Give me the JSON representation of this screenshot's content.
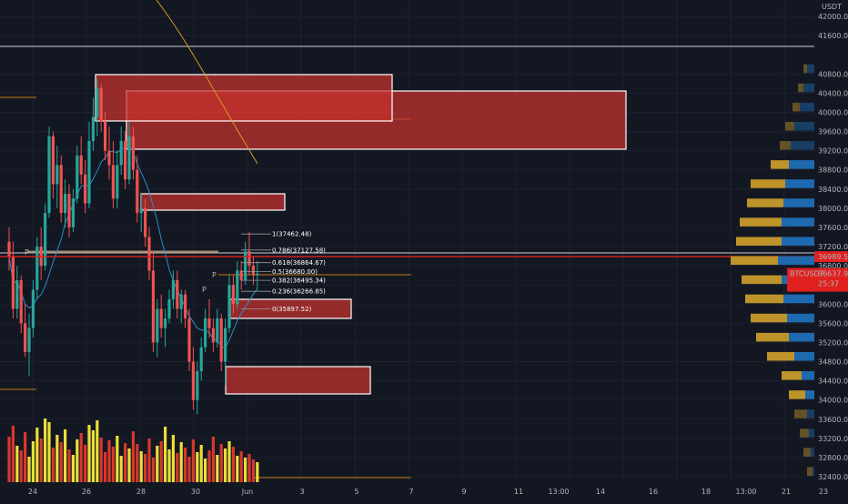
{
  "chart_data": {
    "type": "candlestick",
    "currency": "USDT",
    "y_axis": {
      "range": [
        32200,
        42300
      ],
      "scale": "linear",
      "ticks": [
        42000,
        41600,
        40800,
        40400,
        40000,
        39600,
        39200,
        38800,
        38400,
        38000,
        37600,
        37200,
        36800,
        36400,
        36000,
        35600,
        35200,
        34800,
        34400,
        34000,
        33600,
        33200,
        32800,
        32400
      ]
    },
    "x_axis": {
      "ticks": [
        "24",
        "26",
        "28",
        "30",
        "Jun",
        "3",
        "5",
        "7",
        "9",
        "11",
        "13:00",
        "14",
        "16",
        "18",
        "13:00",
        "21",
        "23"
      ],
      "tick_index": [
        -13,
        -11,
        -9,
        -7,
        -5,
        -3,
        -1,
        1,
        3,
        5,
        7,
        9,
        11,
        13,
        15,
        17,
        19
      ]
    },
    "price_markers": [
      {
        "label": "",
        "value": "36989.55",
        "price": 36989.55,
        "color": "#e0201f"
      },
      {
        "label": "BTCUSDT",
        "value": "36637.99",
        "price": 36637.99,
        "sub": "25:37",
        "color": "#e0201f"
      }
    ],
    "fib_levels": [
      {
        "ratio": "1",
        "price": "37462.48"
      },
      {
        "ratio": "0.786",
        "price": "37127.58"
      },
      {
        "ratio": "0.618",
        "price": "36864.67"
      },
      {
        "ratio": "0.5",
        "price": "36680.00"
      },
      {
        "ratio": "0.382",
        "price": "36495.34"
      },
      {
        "ratio": "0.236",
        "price": "36266.85"
      },
      {
        "ratio": "0",
        "price": "35897.52"
      }
    ],
    "candles": [
      {
        "o": 37300,
        "h": 37600,
        "l": 36700,
        "c": 37000
      },
      {
        "o": 37000,
        "h": 37300,
        "l": 35700,
        "c": 35900
      },
      {
        "o": 35900,
        "h": 36800,
        "l": 35700,
        "c": 36500
      },
      {
        "o": 36500,
        "h": 36600,
        "l": 35400,
        "c": 35600
      },
      {
        "o": 35600,
        "h": 36000,
        "l": 34900,
        "c": 35000
      },
      {
        "o": 35000,
        "h": 35800,
        "l": 34500,
        "c": 35500
      },
      {
        "o": 35500,
        "h": 36500,
        "l": 35300,
        "c": 36300
      },
      {
        "o": 36300,
        "h": 37400,
        "l": 36100,
        "c": 37200
      },
      {
        "o": 37200,
        "h": 37600,
        "l": 36500,
        "c": 36800
      },
      {
        "o": 36800,
        "h": 38100,
        "l": 36700,
        "c": 37900
      },
      {
        "o": 37900,
        "h": 39700,
        "l": 37800,
        "c": 39500
      },
      {
        "o": 39500,
        "h": 39600,
        "l": 38200,
        "c": 38500
      },
      {
        "o": 38500,
        "h": 39300,
        "l": 38000,
        "c": 38900
      },
      {
        "o": 38900,
        "h": 39100,
        "l": 37700,
        "c": 37900
      },
      {
        "o": 37900,
        "h": 38600,
        "l": 37600,
        "c": 38300
      },
      {
        "o": 38300,
        "h": 38500,
        "l": 37400,
        "c": 37600
      },
      {
        "o": 37600,
        "h": 38400,
        "l": 37500,
        "c": 38200
      },
      {
        "o": 38200,
        "h": 39300,
        "l": 38100,
        "c": 39100
      },
      {
        "o": 39100,
        "h": 39500,
        "l": 38500,
        "c": 38700
      },
      {
        "o": 38700,
        "h": 39000,
        "l": 37900,
        "c": 38100
      },
      {
        "o": 38100,
        "h": 39800,
        "l": 38000,
        "c": 39400
      },
      {
        "o": 39400,
        "h": 40300,
        "l": 39200,
        "c": 39900
      },
      {
        "o": 39900,
        "h": 40700,
        "l": 39500,
        "c": 40500
      },
      {
        "o": 40500,
        "h": 40600,
        "l": 39600,
        "c": 39800
      },
      {
        "o": 39800,
        "h": 40000,
        "l": 39000,
        "c": 39200
      },
      {
        "o": 39200,
        "h": 39700,
        "l": 38600,
        "c": 38900
      },
      {
        "o": 38900,
        "h": 39400,
        "l": 38000,
        "c": 38200
      },
      {
        "o": 38200,
        "h": 39200,
        "l": 38000,
        "c": 38900
      },
      {
        "o": 38900,
        "h": 39700,
        "l": 38700,
        "c": 39400
      },
      {
        "o": 39400,
        "h": 39600,
        "l": 38400,
        "c": 38600
      },
      {
        "o": 38600,
        "h": 39800,
        "l": 38500,
        "c": 39500
      },
      {
        "o": 39500,
        "h": 39700,
        "l": 38600,
        "c": 38800
      },
      {
        "o": 38800,
        "h": 39100,
        "l": 37700,
        "c": 37900
      },
      {
        "o": 37900,
        "h": 38300,
        "l": 37500,
        "c": 38000
      },
      {
        "o": 38000,
        "h": 38200,
        "l": 37200,
        "c": 37400
      },
      {
        "o": 37400,
        "h": 37600,
        "l": 36500,
        "c": 36700
      },
      {
        "o": 36700,
        "h": 37100,
        "l": 35000,
        "c": 35200
      },
      {
        "o": 35200,
        "h": 36100,
        "l": 34900,
        "c": 35900
      },
      {
        "o": 35900,
        "h": 36200,
        "l": 35300,
        "c": 35500
      },
      {
        "o": 35500,
        "h": 35900,
        "l": 35100,
        "c": 35700
      },
      {
        "o": 35700,
        "h": 36300,
        "l": 35600,
        "c": 36100
      },
      {
        "o": 36100,
        "h": 36700,
        "l": 35900,
        "c": 36500
      },
      {
        "o": 36500,
        "h": 36700,
        "l": 35700,
        "c": 35900
      },
      {
        "o": 35900,
        "h": 36300,
        "l": 35600,
        "c": 36200
      },
      {
        "o": 36200,
        "h": 36300,
        "l": 35500,
        "c": 35700
      },
      {
        "o": 35700,
        "h": 35900,
        "l": 34600,
        "c": 34800
      },
      {
        "o": 34800,
        "h": 35100,
        "l": 33800,
        "c": 34000
      },
      {
        "o": 34000,
        "h": 34800,
        "l": 33700,
        "c": 34600
      },
      {
        "o": 34600,
        "h": 35300,
        "l": 34400,
        "c": 35100
      },
      {
        "o": 35100,
        "h": 35900,
        "l": 35000,
        "c": 35700
      },
      {
        "o": 35700,
        "h": 36100,
        "l": 35300,
        "c": 35500
      },
      {
        "o": 35500,
        "h": 35700,
        "l": 35000,
        "c": 35200
      },
      {
        "o": 35200,
        "h": 35900,
        "l": 35100,
        "c": 35700
      },
      {
        "o": 35700,
        "h": 35800,
        "l": 34600,
        "c": 34800
      },
      {
        "o": 34800,
        "h": 35700,
        "l": 34300,
        "c": 35500
      },
      {
        "o": 35500,
        "h": 36600,
        "l": 35400,
        "c": 36400
      },
      {
        "o": 36400,
        "h": 36600,
        "l": 35800,
        "c": 36000
      },
      {
        "o": 36000,
        "h": 36900,
        "l": 35900,
        "c": 36700
      },
      {
        "o": 36700,
        "h": 36900,
        "l": 36300,
        "c": 36500
      },
      {
        "o": 36500,
        "h": 37300,
        "l": 36400,
        "c": 37100
      },
      {
        "o": 37100,
        "h": 37500,
        "l": 36600,
        "c": 36800
      },
      {
        "o": 36800,
        "h": 37000,
        "l": 36400,
        "c": 36600
      },
      {
        "o": 36600,
        "h": 36900,
        "l": 36300,
        "c": 36640
      }
    ],
    "volumes": [
      50,
      62,
      40,
      35,
      55,
      28,
      45,
      60,
      48,
      70,
      66,
      38,
      52,
      44,
      58,
      36,
      30,
      47,
      54,
      41,
      63,
      57,
      68,
      49,
      33,
      46,
      39,
      51,
      29,
      43,
      37,
      56,
      42,
      34,
      31,
      48,
      27,
      40,
      45,
      61,
      36,
      52,
      32,
      44,
      38,
      28,
      47,
      33,
      41,
      26,
      35,
      50,
      30,
      42,
      37,
      45,
      39,
      29,
      34,
      27,
      31,
      25,
      22
    ]
  }
}
